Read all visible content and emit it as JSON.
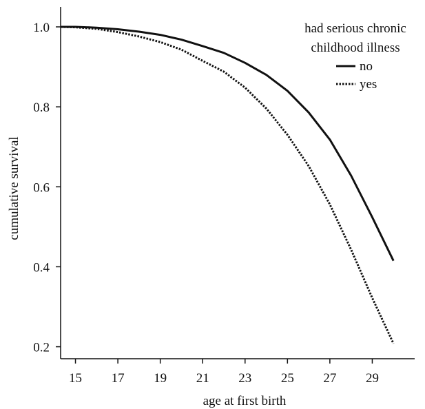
{
  "chart_data": {
    "type": "line",
    "title": "",
    "xlabel": "age at first birth",
    "ylabel": "cumulative survival",
    "xlim": [
      14.3,
      31.0
    ],
    "ylim": [
      0.17,
      1.05
    ],
    "x_ticks": [
      15,
      17,
      19,
      21,
      23,
      25,
      27,
      29
    ],
    "y_ticks": [
      0.2,
      0.4,
      0.6,
      0.8,
      1.0
    ],
    "y_tick_labels": [
      "0.2",
      "0.4",
      "0.6",
      "0.8",
      "1.0"
    ],
    "grid": false,
    "legend": {
      "position": "top-right",
      "title_lines": [
        "had serious chronic",
        "childhood illness"
      ]
    },
    "series": [
      {
        "name": "no",
        "style": "solid",
        "x": [
          14.3,
          15,
          16,
          17,
          18,
          19,
          20,
          21,
          22,
          23,
          24,
          25,
          26,
          27,
          28,
          29,
          30
        ],
        "y": [
          1.0,
          1.0,
          0.998,
          0.994,
          0.988,
          0.98,
          0.968,
          0.952,
          0.935,
          0.91,
          0.88,
          0.84,
          0.786,
          0.718,
          0.628,
          0.524,
          0.415
        ]
      },
      {
        "name": "yes",
        "style": "dotted",
        "x": [
          14.3,
          15,
          16,
          17,
          18,
          19,
          20,
          21,
          22,
          23,
          24,
          25,
          26,
          27,
          28,
          29,
          30
        ],
        "y": [
          1.0,
          0.999,
          0.995,
          0.987,
          0.976,
          0.962,
          0.943,
          0.915,
          0.888,
          0.848,
          0.796,
          0.73,
          0.652,
          0.556,
          0.443,
          0.322,
          0.208
        ]
      }
    ]
  }
}
